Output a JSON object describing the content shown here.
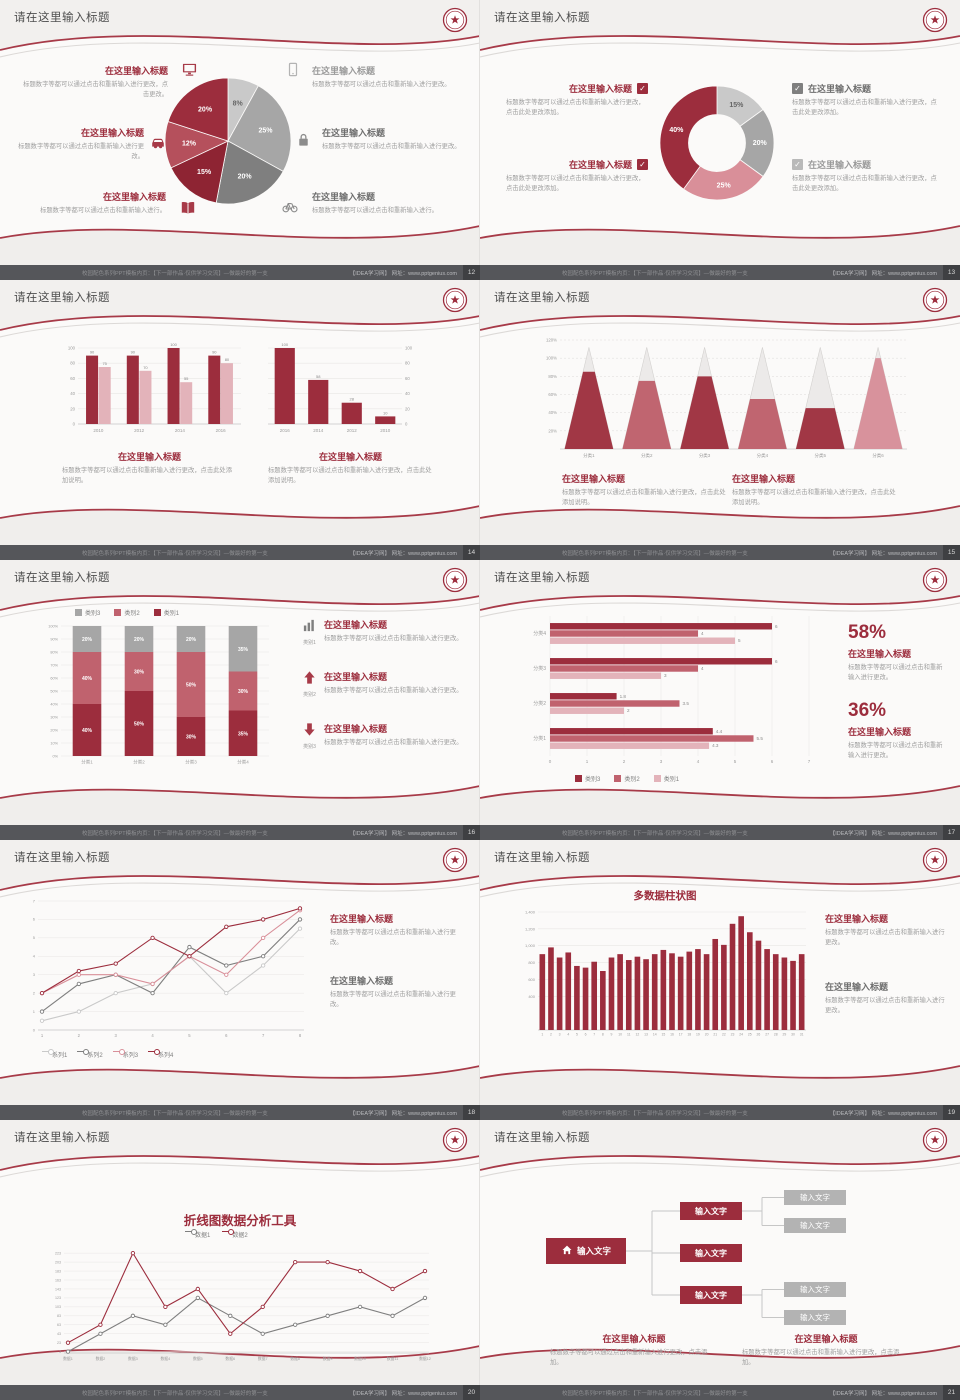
{
  "footer": {
    "left": "校园配色系列PPT模板内页：【下一部作品·仅供学习交流】—做最好的第一支",
    "right": "【IDEA学习网】 网址：www.pptgenius.com"
  },
  "slides": [
    {
      "page": "12",
      "header": "请在这里输入标题",
      "left_items": [
        {
          "title": "在这里输入标题",
          "text": "标题数字等都可以通过点击和重新输入进行更改，点击更改。"
        },
        {
          "title": "在这里输入标题",
          "text": "标题数字等都可以通过点击和重新输入进行更改。"
        },
        {
          "title": "在这里输入标题",
          "text": "标题数字等都可以通过点击和重新输入进行。"
        }
      ],
      "right_items": [
        {
          "title": "在这里输入标题",
          "text": "标题数字等都可以通过点击和重新输入进行更改。"
        },
        {
          "title": "在这里输入标题",
          "text": "标题数字等都可以通过点击和重新输入进行更改。"
        },
        {
          "title": "在这里输入标题",
          "text": "标题数字等都可以通过点击和重新输入进行。"
        }
      ]
    },
    {
      "page": "13",
      "header": "请在这里输入标题",
      "left_items": [
        {
          "title": "在这里输入标题",
          "text": "标题数字等都可以通过点击和重新输入进行更改，点击此处更改添加。"
        },
        {
          "title": "在这里输入标题",
          "text": "标题数字等都可以通过点击和重新输入进行更改，点击此处更改添加。"
        }
      ],
      "right_items": [
        {
          "title": "在这里输入标题",
          "text": "标题数字等都可以通过点击和重新输入进行更改，点击此处更改添加。"
        },
        {
          "title": "在这里输入标题",
          "text": "标题数字等都可以通过点击和重新输入进行更改，点击此处更改添加。"
        }
      ]
    },
    {
      "page": "14",
      "header": "请在这里输入标题",
      "blocks": [
        {
          "title": "在这里输入标题",
          "text": "标题数字等都可以通过点击和重新输入进行更改，点击此处添加说明。"
        },
        {
          "title": "在这里输入标题",
          "text": "标题数字等都可以通过点击和重新输入进行更改，点击此处添加说明。"
        }
      ]
    },
    {
      "page": "15",
      "header": "请在这里输入标题",
      "blocks": [
        {
          "title": "在这里输入标题",
          "text": "标题数字等都可以通过点击和重新输入进行更改，点击此处添加说明。"
        },
        {
          "title": "在这里输入标题",
          "text": "标题数字等都可以通过点击和重新输入进行更改，点击此处添加说明。"
        }
      ]
    },
    {
      "page": "16",
      "header": "请在这里输入标题",
      "items": [
        {
          "icon_label": "类别1",
          "title": "在这里输入标题",
          "text": "标题数字等都可以通过点击和重新输入进行更改。"
        },
        {
          "icon_label": "类别2",
          "title": "在这里输入标题",
          "text": "标题数字等都可以通过点击和重新输入进行更改。"
        },
        {
          "icon_label": "类别3",
          "title": "在这里输入标题",
          "text": "标题数字等都可以通过点击和重新输入进行更改。"
        }
      ]
    },
    {
      "page": "17",
      "header": "请在这里输入标题",
      "stats": [
        {
          "value": "58%",
          "title": "在这里输入标题",
          "text": "标题数字等都可以通过点击和重新输入进行更改。"
        },
        {
          "value": "36%",
          "title": "在这里输入标题",
          "text": "标题数字等都可以通过点击和重新输入进行更改。"
        }
      ]
    },
    {
      "page": "18",
      "header": "请在这里输入标题",
      "blocks": [
        {
          "title": "在这里输入标题",
          "text": "标题数字等都可以通过点击和重新输入进行更改。"
        },
        {
          "title": "在这里输入标题",
          "text": "标题数字等都可以通过点击和重新输入进行更改。"
        }
      ]
    },
    {
      "page": "19",
      "header": "请在这里输入标题",
      "blocks": [
        {
          "title": "在这里输入标题",
          "text": "标题数字等都可以通过点击和重新输入进行更改。"
        },
        {
          "title": "在这里输入标题",
          "text": "标题数字等都可以通过点击和重新输入进行更改。"
        }
      ]
    },
    {
      "page": "20",
      "header": "请在这里输入标题"
    },
    {
      "page": "21",
      "header": "请在这里输入标题",
      "diagram": {
        "root": "输入文字",
        "children": [
          "输入文字",
          "输入文字",
          "输入文字"
        ],
        "leaves": [
          "输入文字",
          "输入文字",
          "输入文字",
          "输入文字"
        ]
      },
      "blocks": [
        {
          "title": "在这里输入标题",
          "text": "标题数字等都可以通过点击和重新输入进行更改，点击添加。"
        },
        {
          "title": "在这里输入标题",
          "text": "标题数字等都可以通过点击和重新输入进行更改，点击添加。"
        }
      ]
    }
  ],
  "chart_data": [
    {
      "type": "pie",
      "values": [
        8,
        25,
        20,
        15,
        12,
        20
      ],
      "labels": [
        "8%",
        "25%",
        "20%",
        "15%",
        "12%",
        "20%"
      ],
      "colors": [
        "#c9c9c9",
        "#a6a6a6",
        "#7f7f7f",
        "#8e2433",
        "#b5505c",
        "#9c2d3d"
      ],
      "label_colors": [
        "#666666",
        "#ffffff",
        "#ffffff",
        "#ffffff",
        "#ffffff",
        "#ffffff"
      ]
    },
    {
      "type": "donut",
      "values": [
        15,
        20,
        25,
        40
      ],
      "labels": [
        "15%",
        "20%",
        "25%",
        "40%"
      ],
      "colors": [
        "#c9c9c9",
        "#a6a6a6",
        "#d98f99",
        "#9c2d3d"
      ],
      "label_colors": [
        "#666666",
        "#ffffff",
        "#ffffff",
        "#ffffff"
      ]
    },
    {
      "type": "bar",
      "categories": [
        "2010",
        "2012",
        "2014",
        "2016"
      ],
      "series": [
        {
          "name": "系列1",
          "color": "#9c2d3d",
          "values": [
            90,
            90,
            100,
            90
          ]
        },
        {
          "name": "系列2",
          "color": "#e3b3ba",
          "values": [
            75,
            70,
            55,
            80
          ]
        }
      ],
      "ymax": 100,
      "yticks": [
        0,
        20,
        40,
        60,
        80,
        100
      ],
      "value_labels": true,
      "axis": "left"
    },
    {
      "type": "bar",
      "categories": [
        "2016",
        "2014",
        "2012",
        "2010"
      ],
      "series": [
        {
          "name": "系列1",
          "color": "#9c2d3d",
          "values": [
            100,
            58,
            28,
            10
          ]
        }
      ],
      "ymax": 100,
      "yticks": [
        0,
        20,
        40,
        60,
        80,
        100
      ],
      "value_labels": true,
      "axis": "right"
    },
    {
      "type": "pyramid",
      "categories": [
        "分类1",
        "分类2",
        "分类3",
        "分类4",
        "分类5",
        "分类6"
      ],
      "values": [
        85,
        75,
        80,
        55,
        45,
        100
      ],
      "apex": 112,
      "ymax": 120,
      "colors": [
        "#a13745",
        "#c06570",
        "#a13745",
        "#c06570",
        "#a13745",
        "#d8929c"
      ],
      "yticks": [
        "20%",
        "40%",
        "60%",
        "80%",
        "100%",
        "120%"
      ]
    },
    {
      "type": "stacked",
      "categories": [
        "分类1",
        "分类2",
        "分类3",
        "分类4"
      ],
      "series": [
        {
          "name": "类别1",
          "color": "#9c2d3d",
          "values": [
            40,
            50,
            30,
            35
          ]
        },
        {
          "name": "类别2",
          "color": "#c0626e",
          "values": [
            40,
            30,
            50,
            30
          ]
        },
        {
          "name": "类别3",
          "color": "#a6a6a6",
          "values": [
            20,
            20,
            20,
            35
          ]
        }
      ],
      "yticks": [
        "0%",
        "10%",
        "20%",
        "30%",
        "40%",
        "50%",
        "60%",
        "70%",
        "80%",
        "90%",
        "100%"
      ]
    },
    {
      "type": "hbar",
      "categories": [
        "分类4",
        "分类3",
        "分类2",
        "分类1"
      ],
      "series": [
        {
          "name": "类别3",
          "color": "#9c2d3d",
          "values": [
            6,
            6,
            1.8,
            4.4
          ]
        },
        {
          "name": "类别2",
          "color": "#c0626e",
          "values": [
            4,
            4,
            3.5,
            5.5
          ]
        },
        {
          "name": "类别1",
          "color": "#e3b3ba",
          "values": [
            5,
            3,
            2,
            4.3
          ]
        }
      ],
      "xticks": [
        0,
        1,
        2,
        3,
        4,
        5,
        6,
        7
      ],
      "xmax": 7
    },
    {
      "type": "line",
      "x": [
        "1",
        "2",
        "3",
        "4",
        "5",
        "6",
        "7",
        "8"
      ],
      "series": [
        {
          "name": "系列1",
          "color": "#c9c9c9",
          "values": [
            0.5,
            1,
            2,
            2.5,
            4,
            2,
            3.5,
            5.5
          ]
        },
        {
          "name": "系列2",
          "color": "#7f7f7f",
          "values": [
            1,
            2.5,
            3,
            2,
            4.5,
            3.5,
            4,
            6
          ]
        },
        {
          "name": "系列3",
          "color": "#d98f99",
          "values": [
            2,
            3,
            3,
            2.5,
            4,
            3,
            5,
            6.5
          ]
        },
        {
          "name": "系列4",
          "color": "#9c2d3d",
          "values": [
            2,
            3.2,
            3.6,
            5,
            4,
            5.6,
            6,
            6.6
          ]
        }
      ],
      "ymax": 7,
      "yticks": [
        0,
        1,
        2,
        3,
        4,
        5,
        6,
        7
      ]
    },
    {
      "type": "bar",
      "title": "多数据柱状图",
      "thin": true,
      "axis": "left",
      "categories": [
        "1",
        "2",
        "3",
        "4",
        "5",
        "6",
        "7",
        "8",
        "9",
        "10",
        "11",
        "12",
        "13",
        "14",
        "15",
        "16",
        "17",
        "18",
        "19",
        "20",
        "21",
        "22",
        "23",
        "24",
        "25",
        "26",
        "27",
        "28",
        "29",
        "30",
        "31"
      ],
      "series": [
        {
          "name": "数据",
          "color": "#9c2d3d",
          "values": [
            900,
            980,
            860,
            920,
            760,
            740,
            810,
            700,
            860,
            900,
            830,
            870,
            840,
            900,
            950,
            910,
            870,
            930,
            960,
            900,
            1080,
            1010,
            1260,
            1350,
            1160,
            1060,
            960,
            900,
            860,
            820,
            900
          ]
        }
      ],
      "ymax": 1400,
      "yticks": [
        "400",
        "600",
        "800",
        "1,000",
        "1,200",
        "1,400"
      ]
    },
    {
      "type": "line",
      "title": "折线图数据分析工具",
      "x": [
        "数据1",
        "数据2",
        "数据3",
        "数据4",
        "数据5",
        "数据6",
        "数据7",
        "数据8",
        "数据9",
        "数据10",
        "数据11",
        "数据12"
      ],
      "series": [
        {
          "name": "数据1",
          "color": "#7f7f7f",
          "values": [
            3,
            43,
            83,
            63,
            123,
            83,
            43,
            63,
            83,
            103,
            83,
            123
          ]
        },
        {
          "name": "数据2",
          "color": "#9c2d3d",
          "values": [
            23,
            63,
            223,
            103,
            143,
            43,
            103,
            203,
            203,
            183,
            143,
            183
          ]
        }
      ],
      "ymax": 230,
      "yticks": [
        3,
        23,
        43,
        63,
        83,
        103,
        123,
        143,
        163,
        183,
        203,
        223
      ]
    }
  ]
}
